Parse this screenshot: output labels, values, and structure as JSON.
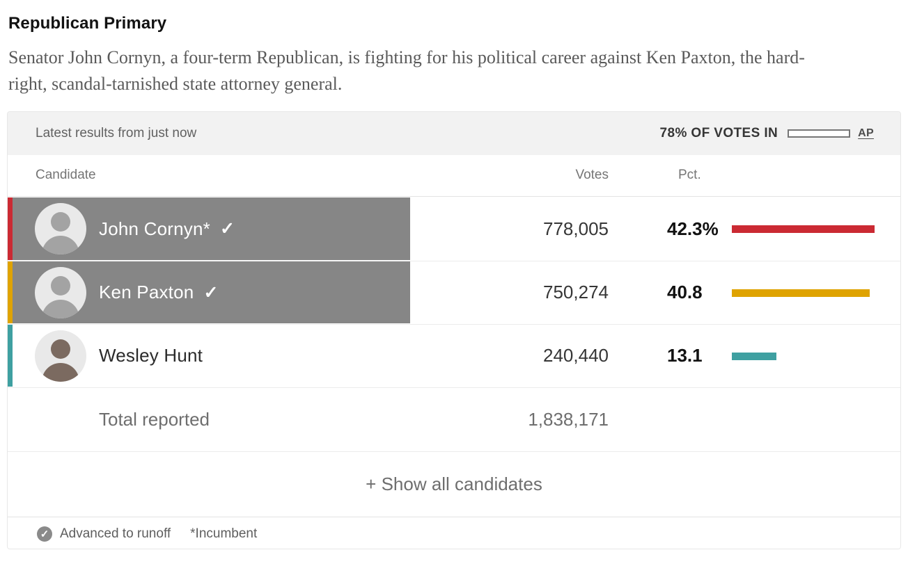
{
  "page": {
    "title": "Republican Primary",
    "intro": "Senator John Cornyn, a four-term Republican, is fighting for his political career against Ken Paxton, the hard-right, scandal-tarnished state attorney general."
  },
  "results_card": {
    "status_text": "Latest results from just now",
    "votes_in_label": "78% OF VOTES IN",
    "votes_in_pct": 78,
    "source_label": "AP",
    "columns": {
      "candidate": "Candidate",
      "votes": "Votes",
      "pct": "Pct."
    },
    "check_icon": "✓",
    "rows": [
      {
        "name": "John Cornyn*",
        "advanced": true,
        "highlight": true,
        "votes": "778,005",
        "pct": "42.3%",
        "pct_value": 42.3,
        "color": "#cb2a33"
      },
      {
        "name": "Ken Paxton",
        "advanced": true,
        "highlight": true,
        "votes": "750,274",
        "pct": "40.8",
        "pct_value": 40.8,
        "color": "#dfa301"
      },
      {
        "name": "Wesley Hunt",
        "advanced": false,
        "highlight": false,
        "votes": "240,440",
        "pct": "13.1",
        "pct_value": 13.1,
        "color": "#3fa0a1"
      }
    ],
    "total": {
      "label": "Total reported",
      "value": "1,838,171"
    },
    "show_all_label": "+ Show all candidates",
    "footnotes": {
      "advanced_icon": "✓",
      "advanced": "Advanced to runoff",
      "incumbent": "*Incumbent"
    }
  },
  "chart_data": {
    "type": "bar",
    "title": "Republican Primary",
    "categories": [
      "John Cornyn*",
      "Ken Paxton",
      "Wesley Hunt"
    ],
    "series": [
      {
        "name": "Pct. of vote",
        "values": [
          42.3,
          40.8,
          13.1
        ]
      },
      {
        "name": "Votes",
        "values": [
          778005,
          750274,
          240440
        ]
      }
    ],
    "bar_colors": [
      "#cb2a33",
      "#dfa301",
      "#3fa0a1"
    ],
    "total_reported": 1838171,
    "pct_votes_in": 78,
    "legend_position": "none",
    "grid": false,
    "xlim": [
      0,
      100
    ],
    "annotations": [
      "Advanced to runoff (check mark)",
      "*Incumbent"
    ]
  }
}
